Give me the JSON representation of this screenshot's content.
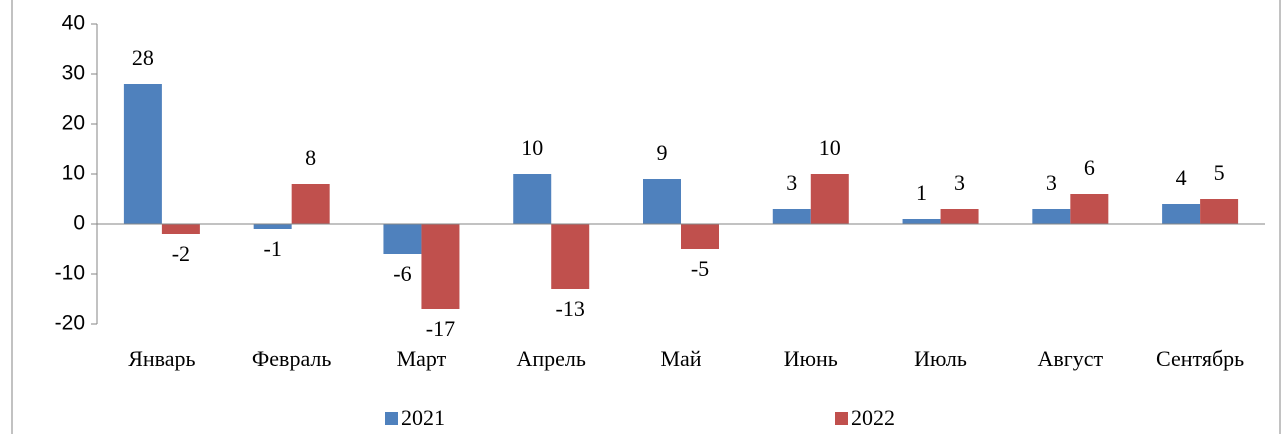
{
  "chart_data": {
    "type": "bar",
    "categories": [
      "Январь",
      "Февраль",
      "Март",
      "Апрель",
      "Май",
      "Июнь",
      "Июль",
      "Август",
      "Сентябрь"
    ],
    "series": [
      {
        "name": "2021",
        "color": "#4f81bd",
        "values": [
          28,
          -1,
          -6,
          10,
          9,
          3,
          1,
          3,
          4
        ]
      },
      {
        "name": "2022",
        "color": "#c0504d",
        "values": [
          -2,
          8,
          -17,
          -13,
          -5,
          10,
          3,
          6,
          5
        ]
      }
    ],
    "ylim": [
      -20,
      40
    ],
    "yticks": [
      -20,
      -10,
      0,
      10,
      20,
      30,
      40
    ],
    "grid": false,
    "legend": "bottom"
  }
}
